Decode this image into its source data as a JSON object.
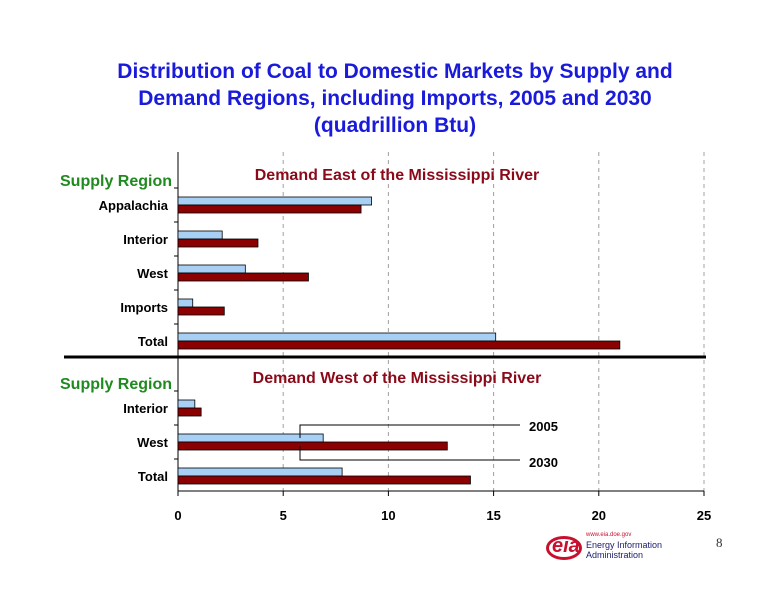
{
  "title_lines": [
    "Distribution of Coal to Domestic Markets by Supply and",
    "Demand Regions, including Imports, 2005 and 2030",
    "(quadrillion Btu)"
  ],
  "slide_number": "8",
  "logo": {
    "mark": "eia",
    "url": "www.eia.doe.gov",
    "name_line1": "Energy Information",
    "name_line2": "Administration"
  },
  "colors": {
    "title": "#1a1adb",
    "series_2005": "#a8d0f5",
    "series_2030": "#8b0000",
    "supply_label": "#1f8a1f",
    "panel_title": "#8b0a1a"
  },
  "chart_data": [
    {
      "type": "bar",
      "orientation": "horizontal",
      "title": "Demand East of the Mississippi River",
      "ylabel": "Supply Region",
      "categories": [
        "Appalachia",
        "Interior",
        "West",
        "Imports",
        "Total"
      ],
      "series": [
        {
          "name": "2005",
          "values": [
            9.2,
            2.1,
            3.2,
            0.7,
            15.1
          ]
        },
        {
          "name": "2030",
          "values": [
            8.7,
            3.8,
            6.2,
            2.2,
            21.0
          ]
        }
      ],
      "xlim": [
        0,
        25
      ],
      "grid": "vertical dashed"
    },
    {
      "type": "bar",
      "orientation": "horizontal",
      "title": "Demand West of the Mississippi River",
      "ylabel": "Supply Region",
      "categories": [
        "Interior",
        "West",
        "Total"
      ],
      "series": [
        {
          "name": "2005",
          "values": [
            0.8,
            6.9,
            7.8
          ]
        },
        {
          "name": "2030",
          "values": [
            1.1,
            12.8,
            13.9
          ]
        }
      ],
      "xlim": [
        0,
        25
      ],
      "xticks": [
        "0",
        "5",
        "10",
        "15",
        "20",
        "25"
      ],
      "legend": "callout labels on the West bars",
      "grid": "vertical dashed"
    }
  ]
}
